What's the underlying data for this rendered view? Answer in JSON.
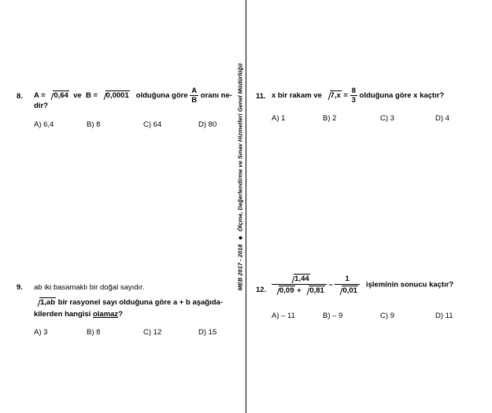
{
  "vertical_banner": {
    "org": "Ölçme, Değerlendirme ve Sınav Hizmetleri Genel Müdürlüğü",
    "year": "MEB  2017 - 2018"
  },
  "q8": {
    "number": "8.",
    "a_label": "A = ",
    "a_rad": "0,64",
    "ve1": "ve",
    "b_label": "B = ",
    "b_rad": "0,0001",
    "text1": "olduğuna göre",
    "frac_n": "A",
    "frac_d": "B",
    "text2": "oranı ne-",
    "text3": "dir?",
    "options": [
      "A)  6,4",
      "B)  8",
      "C)  64",
      "D)  80"
    ]
  },
  "q9": {
    "number": "9.",
    "line1": "ab iki basamaklı bir doğal sayıdır.",
    "rad": "1,ab",
    "line2": "bir rasyonel sayı olduğuna göre a + b aşağıda-",
    "line3_a": "kilerden hangisi",
    "line3_u": "olamaz",
    "line3_b": "?",
    "options": [
      "A)  3",
      "B)  8",
      "C)  12",
      "D)  15"
    ]
  },
  "q11": {
    "number": "11.",
    "text1": "x bir rakam ve",
    "rad": "7,x",
    "eq": "=",
    "frac_n": "8",
    "frac_d": "3",
    "text2": "olduğuna göre x kaçtır?",
    "options": [
      "A)  1",
      "B)  2",
      "C)  3",
      "D)  4"
    ]
  },
  "q12": {
    "number": "12.",
    "f1_n": "1,44",
    "f1_d1": "0,09",
    "plus": "+",
    "f1_d2": "0,81",
    "minus": "–",
    "f2_n": "1",
    "f2_d": "0,01",
    "text": "işleminin sonucu kaçtır?",
    "options": [
      "A)  – 11",
      "B)  – 9",
      "C)  9",
      "D)  11"
    ]
  }
}
